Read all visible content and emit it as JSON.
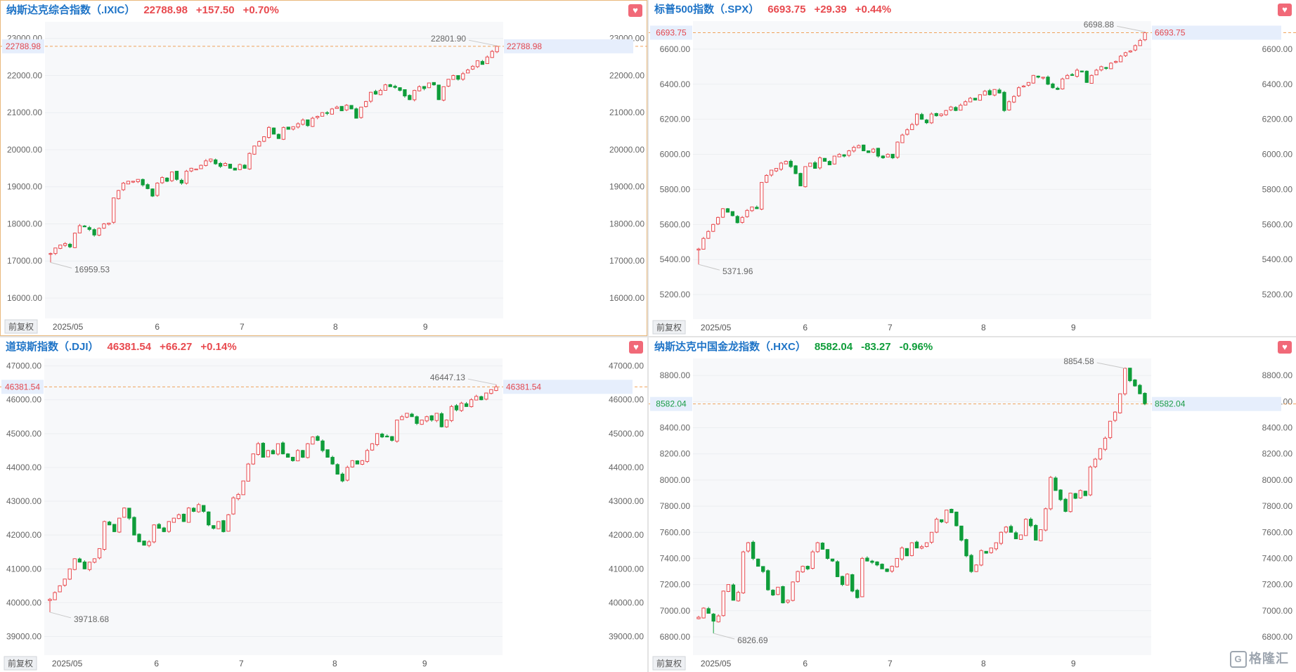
{
  "ui": {
    "fq_label": "前复权",
    "heart_icon": "heart-icon",
    "up_color": "#e84a4f",
    "down_color": "#0f9d3a",
    "name_color": "#1f74c7",
    "watermark": "格隆汇"
  },
  "panels": [
    {
      "name": "纳斯达克综合指数（.IXIC）",
      "price": "22788.98",
      "change": "+157.50",
      "pct": "+0.70%",
      "dir": "up",
      "current_label": "22788.98",
      "high_label": "22801.90",
      "low_label": "16959.53"
    },
    {
      "name": "标普500指数（.SPX）",
      "price": "6693.75",
      "change": "+29.39",
      "pct": "+0.44%",
      "dir": "up",
      "current_label": "6693.75",
      "high_label": "6698.88",
      "low_label": "5371.96"
    },
    {
      "name": "道琼斯指数（.DJI）",
      "price": "46381.54",
      "change": "+66.27",
      "pct": "+0.14%",
      "dir": "up",
      "current_label": "46381.54",
      "high_label": "46447.13",
      "low_label": "39718.68"
    },
    {
      "name": "纳斯达克中国金龙指数（.HXC）",
      "price": "8582.04",
      "change": "-83.27",
      "pct": "-0.96%",
      "dir": "down",
      "current_label": "8582.04",
      "high_label": "8854.58",
      "low_label": "6826.69"
    }
  ],
  "chart_data": [
    {
      "type": "candlestick",
      "title": "纳斯达克综合指数（.IXIC）",
      "ylim": [
        15450,
        23450
      ],
      "y_ticks": [
        "16000.00",
        "17000.00",
        "18000.00",
        "19000.00",
        "20000.00",
        "21000.00",
        "22000.00",
        "23000.00"
      ],
      "x_ticks": [
        "2025/05",
        "6",
        "7",
        "8",
        "9"
      ],
      "current": 22788.98,
      "high": 22801.9,
      "low": 16959.53,
      "closes": [
        17200,
        17350,
        17430,
        17470,
        17380,
        17750,
        17950,
        17920,
        17850,
        17700,
        17880,
        18000,
        18020,
        18700,
        18900,
        19100,
        19150,
        19150,
        19200,
        19050,
        18950,
        18750,
        19100,
        19250,
        19150,
        19400,
        19200,
        19100,
        19420,
        19500,
        19480,
        19580,
        19700,
        19750,
        19620,
        19550,
        19630,
        19500,
        19450,
        19600,
        19500,
        19900,
        20100,
        20220,
        20350,
        20600,
        20420,
        20300,
        20600,
        20550,
        20620,
        20700,
        20800,
        20650,
        20850,
        20900,
        21000,
        20980,
        21100,
        21150,
        21050,
        21200,
        21100,
        20850,
        21150,
        21300,
        21550,
        21500,
        21600,
        21750,
        21700,
        21680,
        21600,
        21450,
        21350,
        21600,
        21700,
        21650,
        21800,
        21750,
        21350,
        21700,
        21900,
        22000,
        21900,
        22050,
        22150,
        22250,
        22400,
        22300,
        22500,
        22650,
        22788.98
      ]
    },
    {
      "type": "candlestick",
      "title": "标普500指数（.SPX）",
      "ylim": [
        5060,
        6760
      ],
      "y_ticks": [
        "5200.00",
        "5400.00",
        "5600.00",
        "5800.00",
        "6000.00",
        "6200.00",
        "6400.00",
        "6600.00"
      ],
      "x_ticks": [
        "2025/05",
        "6",
        "7",
        "8",
        "9"
      ],
      "current": 6693.75,
      "high": 6698.88,
      "low": 5371.96,
      "closes": [
        5460,
        5520,
        5560,
        5600,
        5640,
        5690,
        5670,
        5650,
        5610,
        5640,
        5680,
        5700,
        5690,
        5840,
        5880,
        5910,
        5920,
        5950,
        5960,
        5930,
        5890,
        5820,
        5930,
        5950,
        5920,
        5980,
        5960,
        5940,
        5990,
        6000,
        5990,
        6020,
        6040,
        6050,
        6020,
        6010,
        6030,
        5990,
        5980,
        6000,
        5980,
        6070,
        6110,
        6140,
        6170,
        6230,
        6200,
        6180,
        6230,
        6220,
        6230,
        6250,
        6270,
        6250,
        6280,
        6300,
        6320,
        6310,
        6340,
        6360,
        6340,
        6370,
        6350,
        6250,
        6300,
        6330,
        6380,
        6390,
        6410,
        6450,
        6440,
        6440,
        6400,
        6380,
        6370,
        6430,
        6450,
        6450,
        6480,
        6470,
        6410,
        6450,
        6480,
        6500,
        6490,
        6520,
        6530,
        6560,
        6580,
        6590,
        6620,
        6650,
        6693.75
      ]
    },
    {
      "type": "candlestick",
      "title": "道琼斯指数（.DJI）",
      "ylim": [
        38450,
        47220
      ],
      "y_ticks": [
        "39000.00",
        "40000.00",
        "41000.00",
        "42000.00",
        "43000.00",
        "44000.00",
        "45000.00",
        "46000.00",
        "47000.00"
      ],
      "x_ticks": [
        "2025/05",
        "6",
        "7",
        "8",
        "9"
      ],
      "current": 46381.54,
      "high": 46447.13,
      "low": 39718.68,
      "closes": [
        40100,
        40300,
        40500,
        40700,
        41000,
        41300,
        41200,
        41000,
        41200,
        41300,
        41600,
        42400,
        42300,
        42100,
        42500,
        42800,
        42500,
        42000,
        41800,
        41700,
        41800,
        42300,
        42200,
        42100,
        42400,
        42500,
        42600,
        42400,
        42800,
        42700,
        42900,
        42700,
        42300,
        42200,
        42400,
        42100,
        42600,
        43100,
        43200,
        43600,
        44100,
        44400,
        44700,
        44300,
        44500,
        44400,
        44700,
        44400,
        44300,
        44200,
        44500,
        44300,
        44700,
        44900,
        44800,
        44500,
        44300,
        44100,
        43800,
        43600,
        44000,
        44200,
        44100,
        44200,
        44500,
        44700,
        45000,
        44900,
        44900,
        44800,
        45400,
        45500,
        45600,
        45500,
        45300,
        45400,
        45500,
        45400,
        45600,
        45200,
        45400,
        45800,
        45700,
        45900,
        45800,
        46000,
        46100,
        46000,
        46200,
        46300,
        46381.54
      ]
    },
    {
      "type": "candlestick",
      "title": "纳斯达克中国金龙指数（.HXC）",
      "ylim": [
        6660,
        8930
      ],
      "y_ticks": [
        "6800.00",
        "7000.00",
        "7200.00",
        "7400.00",
        "7600.00",
        "7800.00",
        "8000.00",
        "8200.00",
        "8400.00",
        "8600.00",
        "8800.00"
      ],
      "x_ticks": [
        "2025/05",
        "6",
        "7",
        "8",
        "9"
      ],
      "current": 8582.04,
      "high": 8854.58,
      "low": 6826.69,
      "closes": [
        6950,
        7020,
        6980,
        6920,
        6960,
        7150,
        7200,
        7080,
        7140,
        7450,
        7520,
        7400,
        7340,
        7300,
        7160,
        7120,
        7180,
        7060,
        7080,
        7220,
        7300,
        7340,
        7320,
        7450,
        7520,
        7470,
        7400,
        7380,
        7260,
        7200,
        7280,
        7150,
        7100,
        7400,
        7380,
        7370,
        7350,
        7320,
        7300,
        7340,
        7400,
        7480,
        7420,
        7520,
        7480,
        7490,
        7520,
        7600,
        7700,
        7680,
        7770,
        7750,
        7650,
        7540,
        7420,
        7300,
        7350,
        7460,
        7440,
        7480,
        7520,
        7600,
        7640,
        7600,
        7550,
        7580,
        7700,
        7650,
        7540,
        7620,
        7780,
        8020,
        7920,
        7850,
        7760,
        7900,
        7860,
        7920,
        7880,
        8100,
        8160,
        8240,
        8320,
        8450,
        8520,
        8660,
        8854.58,
        8760,
        8720,
        8660,
        8582.04
      ]
    }
  ]
}
